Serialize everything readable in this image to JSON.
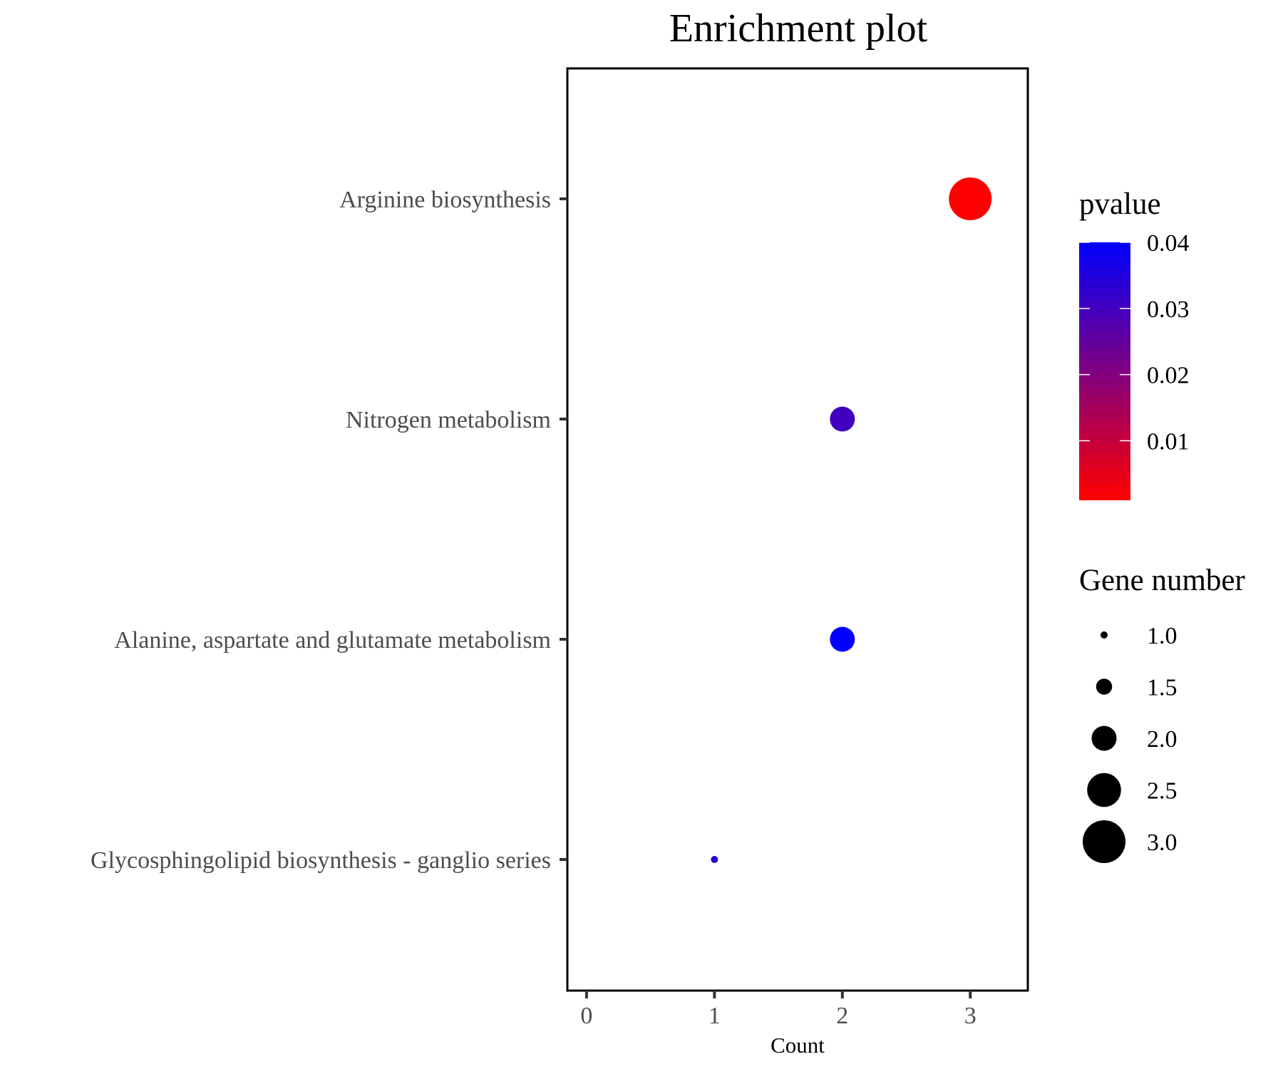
{
  "chart_data": {
    "type": "scatter",
    "title": "Enrichment plot",
    "xlabel": "Count",
    "ylabel": "",
    "xlim": [
      -0.15,
      3.45
    ],
    "xticks": [
      "0",
      "1",
      "2",
      "3"
    ],
    "categories": [
      "Arginine biosynthesis",
      "Nitrogen metabolism",
      "Alanine, aspartate and glutamate metabolism",
      "Glycosphingolipid biosynthesis - ganglio series"
    ],
    "points": [
      {
        "category": "Arginine biosynthesis",
        "count": 3,
        "pvalue": 0.001
      },
      {
        "category": "Nitrogen metabolism",
        "count": 2,
        "pvalue": 0.03
      },
      {
        "category": "Alanine, aspartate and glutamate metabolism",
        "count": 2,
        "pvalue": 0.04
      },
      {
        "category": "Glycosphingolipid biosynthesis - ganglio series",
        "count": 1,
        "pvalue": 0.034
      }
    ],
    "color_legend": {
      "title": "pvalue",
      "low_color": "#ff0000",
      "high_color": "#0000ff",
      "min": 0.001,
      "max": 0.04,
      "ticks": [
        "0.04",
        "0.03",
        "0.02",
        "0.01"
      ]
    },
    "size_legend": {
      "title": "Gene number",
      "ticks": [
        "1.0",
        "1.5",
        "2.0",
        "2.5",
        "3.0"
      ]
    },
    "grid": false,
    "legend_position": "right"
  }
}
